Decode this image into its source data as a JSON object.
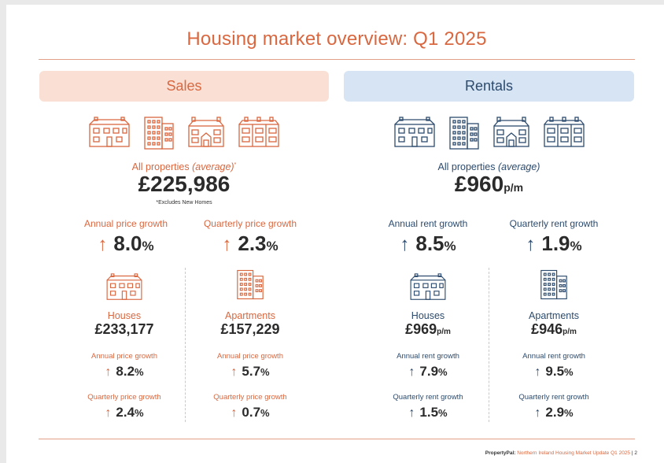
{
  "header": {
    "title": "Housing market overview: Q1 2025"
  },
  "colors": {
    "accent_orange": "#d9673f",
    "accent_navy": "#2c4b6e",
    "sales_banner_bg": "#fae0d4",
    "rentals_banner_bg": "#d6e4f3"
  },
  "sales": {
    "banner": "Sales",
    "all_label": "All properties",
    "all_label_qualifier": "(average)",
    "all_label_marker": "*",
    "all_value": "£225,986",
    "footnote": "*Excludes New Homes",
    "annual_label": "Annual price growth",
    "annual_value": "8.0",
    "quarterly_label": "Quarterly price growth",
    "quarterly_value": "2.3",
    "houses": {
      "label": "Houses",
      "value": "£233,177",
      "annual_label": "Annual price growth",
      "annual_value": "8.2",
      "quarterly_label": "Quarterly price growth",
      "quarterly_value": "2.4"
    },
    "apartments": {
      "label": "Apartments",
      "value": "£157,229",
      "annual_label": "Annual price growth",
      "annual_value": "5.7",
      "quarterly_label": "Quarterly price growth",
      "quarterly_value": "0.7"
    }
  },
  "rentals": {
    "banner": "Rentals",
    "all_label": "All properties",
    "all_label_qualifier": "(average)",
    "all_value": "£960",
    "all_unit": "p/m",
    "annual_label": "Annual rent growth",
    "annual_value": "8.5",
    "quarterly_label": "Quarterly rent growth",
    "quarterly_value": "1.9",
    "houses": {
      "label": "Houses",
      "value": "£969",
      "unit": "p/m",
      "annual_label": "Annual rent growth",
      "annual_value": "7.9",
      "quarterly_label": "Quarterly rent growth",
      "quarterly_value": "1.5"
    },
    "apartments": {
      "label": "Apartments",
      "value": "£946",
      "unit": "p/m",
      "annual_label": "Annual rent growth",
      "annual_value": "9.5",
      "quarterly_label": "Quarterly rent growth",
      "quarterly_value": "2.9"
    }
  },
  "common": {
    "arrow": "↑",
    "percent": "%"
  },
  "icons": {
    "property_row": [
      "detached-house-icon",
      "apartment-block-icon",
      "semi-detached-house-icon",
      "terraced-houses-icon"
    ],
    "houses": "detached-house-icon",
    "apartments": "apartment-block-icon"
  },
  "footer": {
    "brand": "PropertyPal:",
    "publication": "Northern Ireland Housing Market Update Q1 2025",
    "separator": "|",
    "page": "2"
  }
}
